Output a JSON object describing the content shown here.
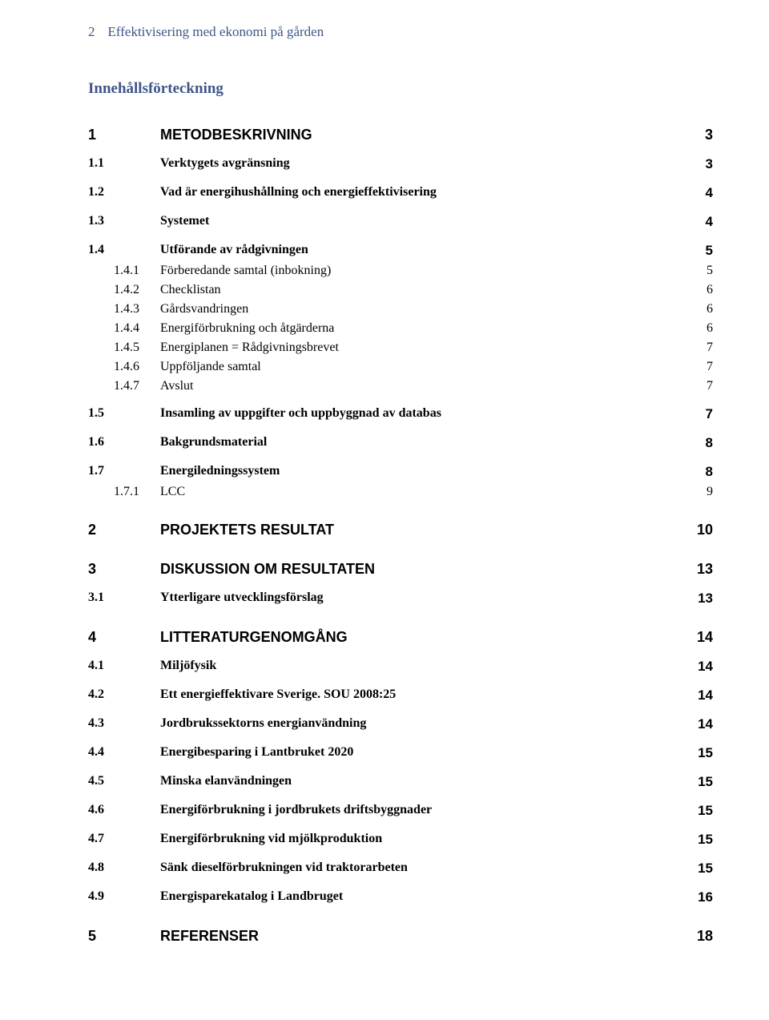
{
  "header": {
    "page_number": "2",
    "title": "Effektivisering med ekonomi på gården"
  },
  "toc_heading": "Innehållsförteckning",
  "toc": [
    {
      "level": 1,
      "num": "1",
      "title": "METODBESKRIVNING",
      "page": "3",
      "first": true
    },
    {
      "level": 2,
      "num": "1.1",
      "title": "Verktygets avgränsning",
      "page": "3"
    },
    {
      "level": 2,
      "num": "1.2",
      "title": "Vad är energihushållning och energieffektivisering",
      "page": "4"
    },
    {
      "level": 2,
      "num": "1.3",
      "title": "Systemet",
      "page": "4"
    },
    {
      "level": 2,
      "num": "1.4",
      "title": "Utförande av rådgivningen",
      "page": "5"
    },
    {
      "level": 3,
      "num": "1.4.1",
      "title": "Förberedande samtal (inbokning)",
      "page": "5"
    },
    {
      "level": 3,
      "num": "1.4.2",
      "title": "Checklistan",
      "page": "6"
    },
    {
      "level": 3,
      "num": "1.4.3",
      "title": "Gårdsvandringen",
      "page": "6"
    },
    {
      "level": 3,
      "num": "1.4.4",
      "title": "Energiförbrukning och åtgärderna",
      "page": "6"
    },
    {
      "level": 3,
      "num": "1.4.5",
      "title": "Energiplanen = Rådgivningsbrevet",
      "page": "7"
    },
    {
      "level": 3,
      "num": "1.4.6",
      "title": "Uppföljande samtal",
      "page": "7"
    },
    {
      "level": 3,
      "num": "1.4.7",
      "title": "Avslut",
      "page": "7"
    },
    {
      "level": 2,
      "num": "1.5",
      "title": "Insamling av uppgifter och uppbyggnad av databas",
      "page": "7"
    },
    {
      "level": 2,
      "num": "1.6",
      "title": "Bakgrundsmaterial",
      "page": "8"
    },
    {
      "level": 2,
      "num": "1.7",
      "title": "Energiledningssystem",
      "page": "8"
    },
    {
      "level": 3,
      "num": "1.7.1",
      "title": "LCC",
      "page": "9"
    },
    {
      "level": 1,
      "num": "2",
      "title": "PROJEKTETS RESULTAT",
      "page": "10"
    },
    {
      "level": 1,
      "num": "3",
      "title": "DISKUSSION OM RESULTATEN",
      "page": "13"
    },
    {
      "level": 2,
      "num": "3.1",
      "title": "Ytterligare utvecklingsförslag",
      "page": "13"
    },
    {
      "level": 1,
      "num": "4",
      "title": "LITTERATURGENOMGÅNG",
      "page": "14"
    },
    {
      "level": 2,
      "num": "4.1",
      "title": "Miljöfysik",
      "page": "14"
    },
    {
      "level": 2,
      "num": "4.2",
      "title": "Ett energieffektivare Sverige. SOU 2008:25",
      "page": "14"
    },
    {
      "level": 2,
      "num": "4.3",
      "title": "Jordbrukssektorns energianvändning",
      "page": "14"
    },
    {
      "level": 2,
      "num": "4.4",
      "title": "Energibesparing i Lantbruket 2020",
      "page": "15"
    },
    {
      "level": 2,
      "num": "4.5",
      "title": "Minska elanvändningen",
      "page": "15"
    },
    {
      "level": 2,
      "num": "4.6",
      "title": "Energiförbrukning i jordbrukets driftsbyggnader",
      "page": "15"
    },
    {
      "level": 2,
      "num": "4.7",
      "title": "Energiförbrukning vid mjölkproduktion",
      "page": "15"
    },
    {
      "level": 2,
      "num": "4.8",
      "title": "Sänk dieselförbrukningen vid traktorarbeten",
      "page": "15"
    },
    {
      "level": 2,
      "num": "4.9",
      "title": "Energisparekatalog i Landbruget",
      "page": "16"
    },
    {
      "level": 1,
      "num": "5",
      "title": "REFERENSER",
      "page": "18"
    }
  ]
}
